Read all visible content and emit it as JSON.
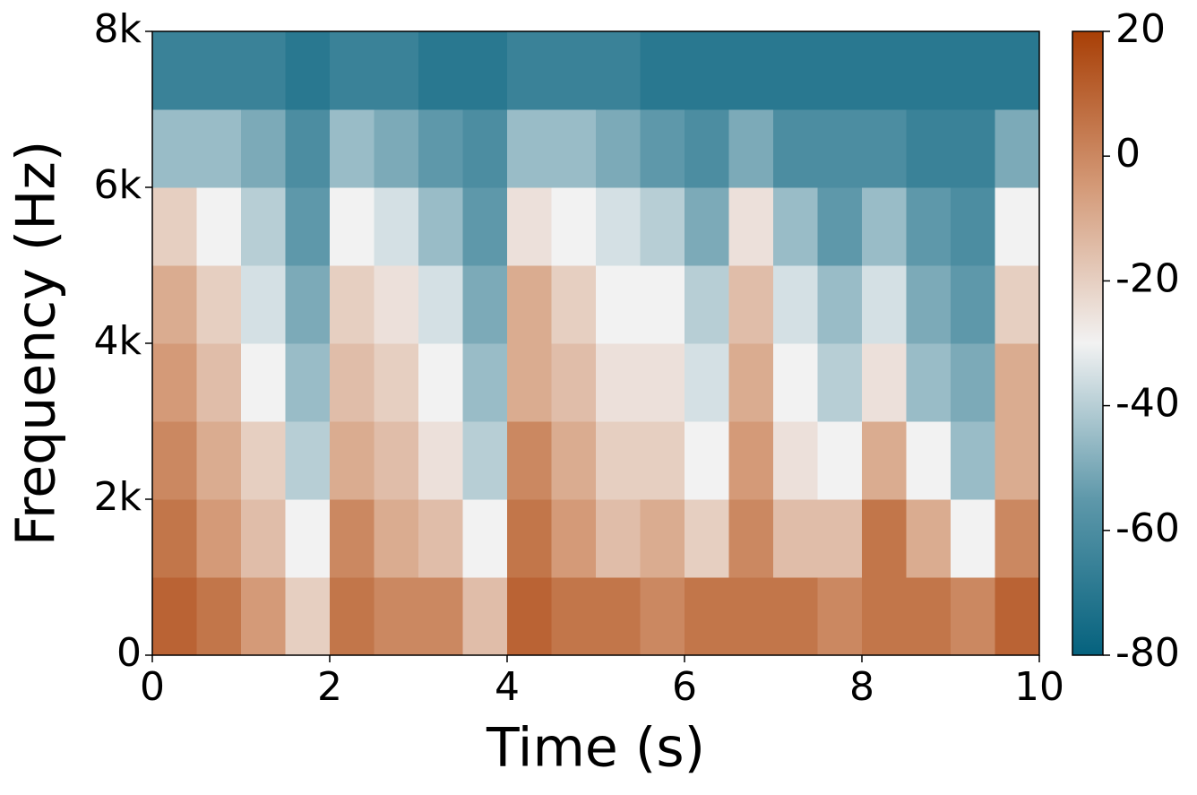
{
  "chart_data": {
    "type": "heatmap",
    "x_label": "Time (s)",
    "y_label": "Frequency (Hz)",
    "xlim": [
      0,
      10
    ],
    "xticks": [
      0,
      2,
      4,
      6,
      8,
      10
    ],
    "ylim": [
      0,
      8000
    ],
    "yticks": [
      0,
      {
        "value": 2000,
        "label": "2k"
      },
      {
        "value": 4000,
        "label": "4k"
      },
      {
        "value": 6000,
        "label": "6k"
      },
      {
        "value": 8000,
        "label": "8k"
      }
    ],
    "clim": [
      -80,
      20
    ],
    "cticks": [
      -80,
      -60,
      -40,
      -20,
      0,
      20
    ],
    "colormap": [
      "#05627e",
      "#5e98aa",
      "#f2f2f2",
      "#d49a78",
      "#a83f06"
    ],
    "z": [
      [
        10,
        5,
        -5,
        -20,
        5,
        0,
        0,
        -15,
        10,
        5,
        5,
        0,
        5,
        5,
        5,
        0,
        5,
        5,
        0,
        10
      ],
      [
        5,
        -5,
        -15,
        -30,
        0,
        -10,
        -15,
        -30,
        5,
        -5,
        -15,
        -10,
        -20,
        0,
        -15,
        -15,
        5,
        -10,
        -30,
        0
      ],
      [
        0,
        -10,
        -20,
        -40,
        -10,
        -15,
        -25,
        -40,
        0,
        -10,
        -20,
        -20,
        -30,
        -5,
        -25,
        -30,
        -10,
        -30,
        -45,
        -10
      ],
      [
        -5,
        -15,
        -30,
        -45,
        -15,
        -20,
        -30,
        -45,
        -10,
        -15,
        -25,
        -25,
        -35,
        -10,
        -30,
        -40,
        -25,
        -45,
        -50,
        -10
      ],
      [
        -10,
        -20,
        -35,
        -50,
        -20,
        -25,
        -35,
        -50,
        -10,
        -20,
        -30,
        -30,
        -40,
        -15,
        -35,
        -45,
        -35,
        -50,
        -55,
        -20
      ],
      [
        -20,
        -30,
        -40,
        -55,
        -30,
        -35,
        -45,
        -55,
        -25,
        -30,
        -35,
        -40,
        -50,
        -25,
        -45,
        -55,
        -45,
        -55,
        -60,
        -30
      ],
      [
        -45,
        -45,
        -50,
        -60,
        -45,
        -50,
        -55,
        -60,
        -45,
        -45,
        -50,
        -55,
        -60,
        -50,
        -60,
        -60,
        -60,
        -65,
        -65,
        -50
      ],
      [
        -65,
        -65,
        -65,
        -70,
        -65,
        -65,
        -70,
        -70,
        -65,
        -65,
        -65,
        -70,
        -70,
        -70,
        -70,
        -70,
        -70,
        -70,
        -70,
        -70
      ]
    ]
  }
}
